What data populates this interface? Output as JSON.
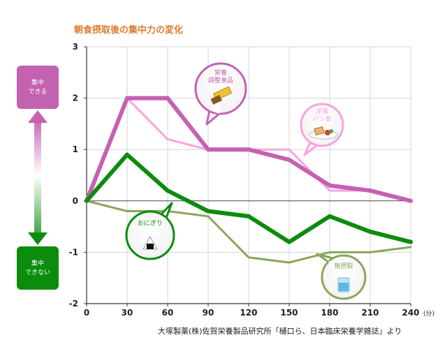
{
  "chart_data": {
    "type": "line",
    "title": "朝食摂取後の集中力の変化",
    "x": [
      0,
      30,
      60,
      90,
      120,
      150,
      180,
      210,
      240
    ],
    "x_unit": "(分)",
    "ylim": [
      -2,
      3
    ],
    "yticks": [
      -2,
      -1,
      0,
      1,
      2,
      3
    ],
    "grid": true,
    "series": [
      {
        "name": "栄養調整食品",
        "color": "#c462b2",
        "values": [
          0,
          2,
          2,
          1,
          1,
          0.8,
          0.3,
          0.2,
          0
        ]
      },
      {
        "name": "洋風パン食",
        "color": "#f7a3df",
        "values": [
          0,
          2,
          1.2,
          1,
          1,
          1,
          0.2,
          0.2,
          0
        ]
      },
      {
        "name": "おにぎり",
        "color": "#0c8c0c",
        "values": [
          0,
          0.9,
          0.2,
          -0.2,
          -0.3,
          -0.8,
          -0.3,
          -0.6,
          -0.8
        ]
      },
      {
        "name": "無摂取",
        "color": "#8aa65a",
        "values": [
          0,
          -0.2,
          -0.2,
          -0.3,
          -1.1,
          -1.2,
          -1,
          -1,
          -0.9
        ]
      }
    ],
    "callouts": [
      {
        "lines": [
          "栄養",
          "調整食品"
        ],
        "series_index": 0
      },
      {
        "lines": [
          "洋風",
          "パン食"
        ],
        "series_index": 1
      },
      {
        "lines": [
          "おにぎり"
        ],
        "series_index": 2
      },
      {
        "lines": [
          "無摂取"
        ],
        "series_index": 3
      }
    ],
    "side_labels": {
      "top": [
        "集中",
        "できる"
      ],
      "bottom": [
        "集中",
        "できない"
      ],
      "top_color": "#c462b2",
      "bottom_color": "#0c8c0c"
    },
    "source": "大塚製薬(株)佐賀栄養製品研究所「樋口ら、日本臨床栄養学雑誌」より"
  }
}
